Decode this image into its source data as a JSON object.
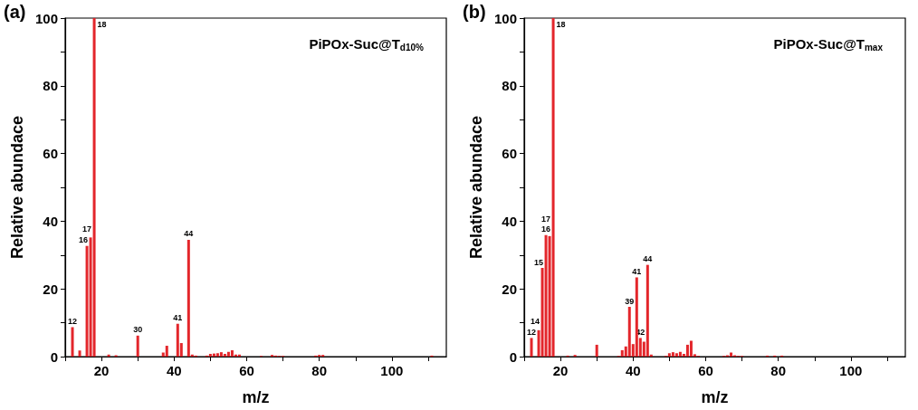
{
  "chart_data": [
    {
      "type": "bar",
      "title": "PiPOx-Suc@T$_{d10%}$",
      "xlabel": "m/z",
      "ylabel": "Relative abundace",
      "annotations": [
        "(a)",
        {
          "text": "12",
          "x": 12,
          "y": 8.7
        },
        {
          "text": "16",
          "x": 16,
          "y": 32.7
        },
        {
          "text": "17",
          "x": 17,
          "y": 35.2
        },
        {
          "text": "18",
          "x": 18,
          "y": 100
        },
        {
          "text": "30",
          "x": 30,
          "y": 6.2
        },
        {
          "text": "41",
          "x": 41,
          "y": 9.7
        },
        {
          "text": "44",
          "x": 44,
          "y": 34.5
        }
      ],
      "x": [
        12,
        14,
        16,
        17,
        18,
        22,
        24,
        30,
        37,
        38,
        41,
        42,
        44,
        45,
        46,
        49,
        50,
        51,
        52,
        53,
        54,
        55,
        56,
        57,
        58,
        64,
        67,
        68,
        69,
        70,
        79,
        80,
        81,
        111
      ],
      "values": [
        8.7,
        1.8,
        32.7,
        35.2,
        100,
        0.6,
        0.4,
        6.2,
        1.2,
        3.2,
        9.7,
        4.0,
        34.5,
        0.6,
        0.3,
        0.3,
        0.8,
        0.9,
        1.0,
        1.3,
        0.8,
        1.4,
        1.9,
        0.6,
        0.6,
        0.2,
        0.5,
        0.3,
        0.2,
        0.2,
        0.3,
        0.5,
        0.5,
        0.3
      ],
      "color": "#e3262b",
      "xlim": [
        10,
        115
      ],
      "xticks": [
        {
          "value": 10,
          "label": null
        },
        20,
        {
          "value": 30,
          "label": null
        },
        40,
        {
          "value": 50,
          "label": null
        },
        60,
        {
          "value": 70,
          "label": null
        },
        80,
        {
          "value": 90,
          "label": null
        },
        100,
        {
          "value": 110,
          "label": null
        }
      ],
      "ylim": [
        0,
        100
      ],
      "yticks": [
        0,
        {
          "value": 10,
          "label": null
        },
        20,
        {
          "value": 30,
          "label": null
        },
        40,
        {
          "value": 50,
          "label": null
        },
        60,
        {
          "value": 70,
          "label": null
        },
        80,
        {
          "value": 90,
          "label": null
        },
        100
      ]
    },
    {
      "type": "bar",
      "title": "PiPOx-Suc@T$_{max}$",
      "xlabel": "m/z",
      "ylabel": "Relative abundace",
      "annotations": [
        "(b)",
        {
          "text": "12",
          "x": 12,
          "y": 5.5
        },
        {
          "text": "14",
          "x": 14,
          "y": 7.8
        },
        {
          "text": "15",
          "x": 15,
          "y": 26.2
        },
        {
          "text": "16",
          "x": 16,
          "y": 35.9
        },
        {
          "text": "17",
          "x": 17,
          "y": 35.6
        },
        {
          "text": "18",
          "x": 18,
          "y": 100
        },
        {
          "text": "39",
          "x": 39,
          "y": 14.7
        },
        {
          "text": "41",
          "x": 41,
          "y": 23.4
        },
        {
          "text": "42",
          "x": 42,
          "y": 5.5
        },
        {
          "text": "44",
          "x": 44,
          "y": 27.1
        }
      ],
      "x": [
        12,
        14,
        15,
        16,
        17,
        18,
        22,
        24,
        30,
        36,
        37,
        38,
        39,
        40,
        41,
        42,
        43,
        44,
        45,
        49,
        50,
        51,
        52,
        53,
        54,
        55,
        56,
        57,
        58,
        65,
        66,
        67,
        68,
        69,
        70,
        77,
        79,
        81
      ],
      "values": [
        5.5,
        7.8,
        26.2,
        35.9,
        35.6,
        100,
        0.3,
        0.5,
        3.5,
        0.2,
        1.9,
        3.0,
        14.7,
        3.7,
        23.4,
        5.5,
        4.4,
        27.1,
        0.6,
        0.2,
        1.0,
        1.3,
        1.0,
        1.4,
        0.8,
        3.5,
        4.7,
        0.7,
        0.2,
        0.2,
        0.4,
        1.2,
        0.4,
        0.2,
        0.2,
        0.3,
        0.3,
        0.3
      ],
      "color": "#e3262b",
      "xlim": [
        10,
        115
      ],
      "xticks": [
        {
          "value": 10,
          "label": null
        },
        20,
        {
          "value": 30,
          "label": null
        },
        40,
        {
          "value": 50,
          "label": null
        },
        60,
        {
          "value": 70,
          "label": null
        },
        80,
        {
          "value": 90,
          "label": null
        },
        100,
        {
          "value": 110,
          "label": null
        }
      ],
      "ylim": [
        0,
        100
      ],
      "yticks": [
        0,
        {
          "value": 10,
          "label": null
        },
        20,
        {
          "value": 30,
          "label": null
        },
        40,
        {
          "value": 50,
          "label": null
        },
        60,
        {
          "value": 70,
          "label": null
        },
        80,
        {
          "value": 90,
          "label": null
        },
        100
      ]
    }
  ]
}
